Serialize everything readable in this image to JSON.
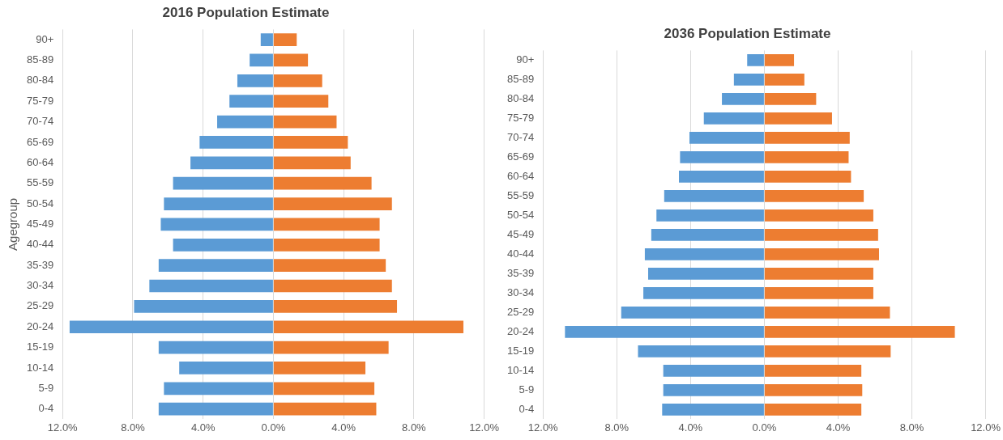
{
  "chart_data": [
    {
      "type": "bar",
      "title": "2016 Population Estimate",
      "ylabel": "Agegroup",
      "orientation": "horizontal",
      "stacked": true,
      "grid": "x",
      "legend": false,
      "categories": [
        "90+",
        "85-89",
        "80-84",
        "75-79",
        "70-74",
        "65-69",
        "60-64",
        "55-59",
        "50-54",
        "45-49",
        "40-44",
        "35-39",
        "30-34",
        "25-29",
        "20-24",
        "15-19",
        "10-14",
        "5-9",
        "0-4"
      ],
      "series": [
        {
          "color": "#5b9bd5",
          "values": [
            -0.72,
            -1.35,
            -2.05,
            -2.5,
            -3.2,
            -4.2,
            -4.72,
            -5.71,
            -6.23,
            -6.41,
            -5.71,
            -6.53,
            -7.06,
            -7.93,
            -11.6,
            -6.53,
            -5.36,
            -6.23,
            -6.53
          ]
        },
        {
          "color": "#ed7d31",
          "values": [
            1.33,
            1.97,
            2.78,
            3.13,
            3.6,
            4.24,
            4.4,
            5.59,
            6.75,
            6.05,
            6.05,
            6.4,
            6.75,
            7.04,
            10.82,
            6.56,
            5.24,
            5.75,
            5.86
          ]
        }
      ],
      "xlim": [
        -12,
        12
      ],
      "xticks": [
        {
          "value": -12,
          "label": "12.0%"
        },
        {
          "value": -8,
          "label": "8.0%"
        },
        {
          "value": -4,
          "label": "4.0%"
        },
        {
          "value": 0,
          "label": "0.0%"
        },
        {
          "value": 4,
          "label": "4.0%"
        },
        {
          "value": 8,
          "label": "8.0%"
        },
        {
          "value": 12,
          "label": "12.0%"
        }
      ]
    },
    {
      "type": "bar",
      "title": "2036 Population Estimate",
      "orientation": "horizontal",
      "stacked": true,
      "grid": "x",
      "legend": false,
      "categories": [
        "90+",
        "85-89",
        "80-84",
        "75-79",
        "70-74",
        "65-69",
        "60-64",
        "55-59",
        "50-54",
        "45-49",
        "40-44",
        "35-39",
        "30-34",
        "25-29",
        "20-24",
        "15-19",
        "10-14",
        "5-9",
        "0-4"
      ],
      "series": [
        {
          "color": "#5b9bd5",
          "values": [
            -0.93,
            -1.65,
            -2.3,
            -3.28,
            -4.06,
            -4.57,
            -4.63,
            -5.43,
            -5.85,
            -6.13,
            -6.48,
            -6.3,
            -6.56,
            -7.76,
            -10.81,
            -6.85,
            -5.48,
            -5.48,
            -5.54
          ]
        },
        {
          "color": "#ed7d31",
          "values": [
            1.61,
            2.17,
            2.81,
            3.67,
            4.63,
            4.57,
            4.7,
            5.39,
            5.91,
            6.17,
            6.22,
            5.91,
            5.91,
            6.81,
            10.33,
            6.85,
            5.26,
            5.31,
            5.26
          ]
        }
      ],
      "xlim": [
        -12,
        12
      ],
      "xticks": [
        {
          "value": -12,
          "label": "12.0%"
        },
        {
          "value": -8,
          "label": "8.0%"
        },
        {
          "value": -4,
          "label": "4.0%"
        },
        {
          "value": 0,
          "label": "0.0%"
        },
        {
          "value": 4,
          "label": "4.0%"
        },
        {
          "value": 8,
          "label": "8.0%"
        },
        {
          "value": 12,
          "label": "12.0%"
        }
      ]
    }
  ]
}
